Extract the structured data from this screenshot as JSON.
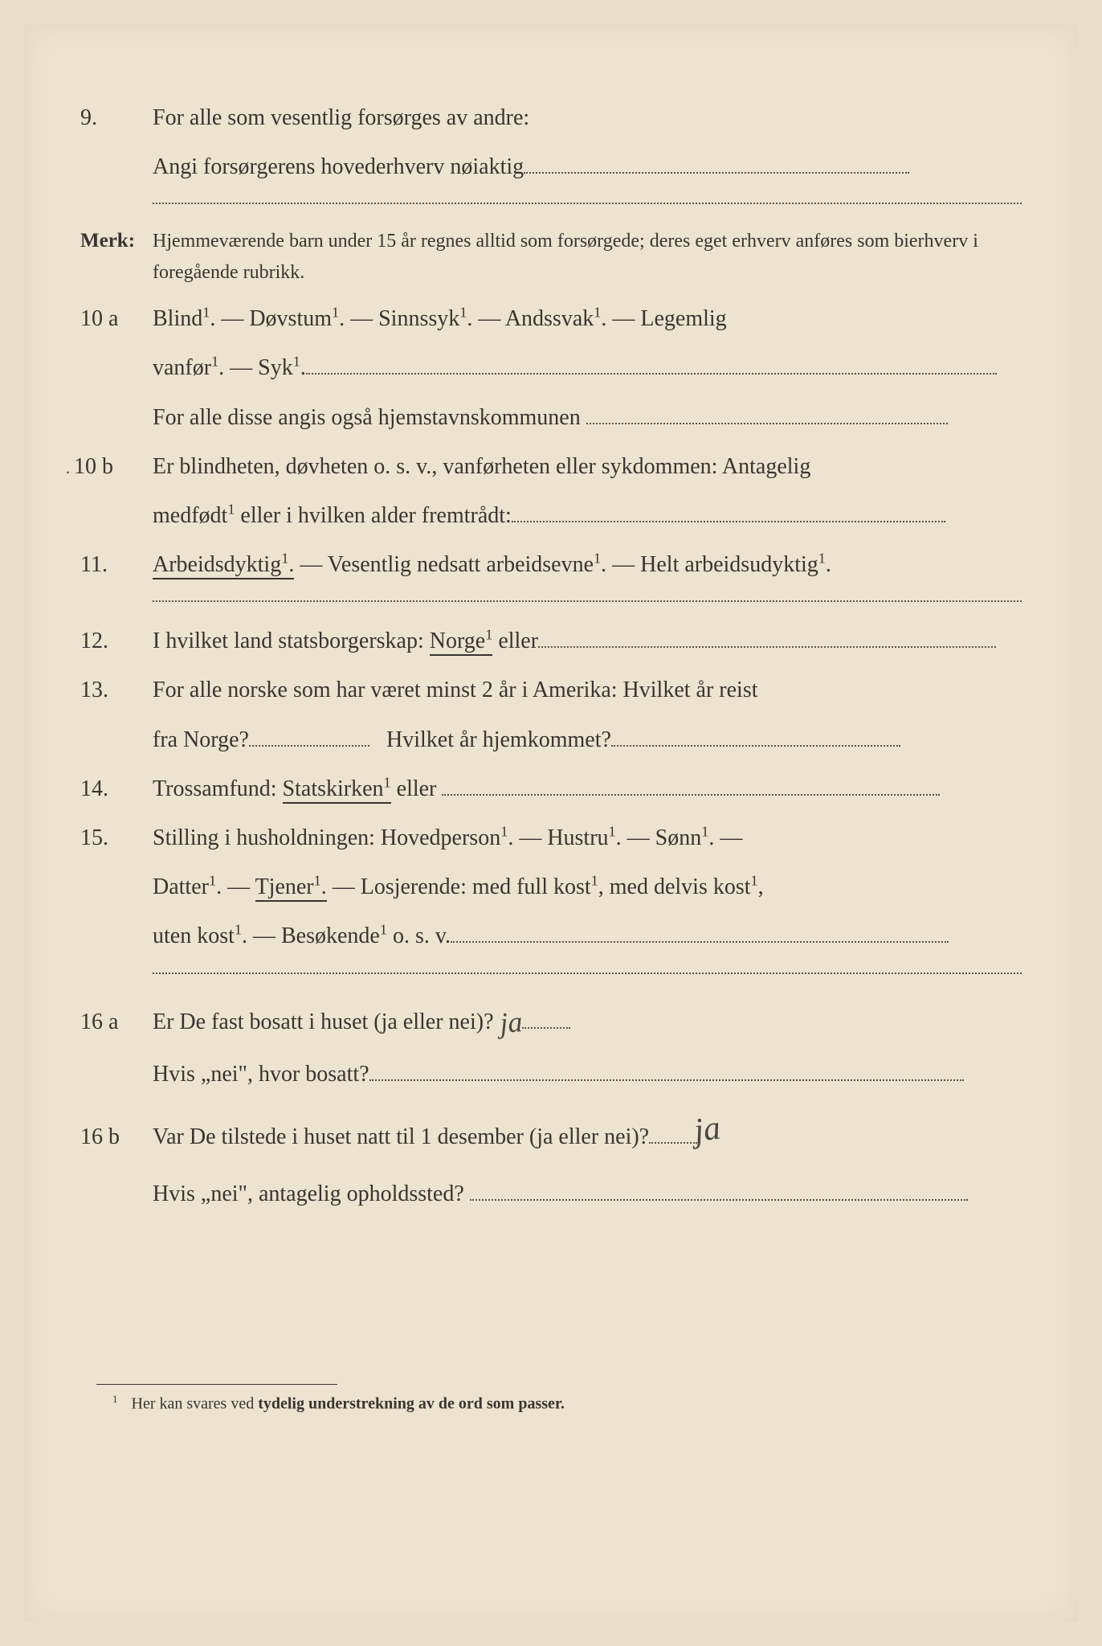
{
  "background_color": "#ece4d0",
  "text_color": "#3a3430",
  "q9": {
    "num": "9.",
    "line1": "For alle som vesentlig forsørges av andre:",
    "line2": "Angi forsørgerens hovederhverv nøiaktig"
  },
  "merk": {
    "label": "Merk:",
    "text": "Hjemmeværende barn under 15 år regnes alltid som forsørgede; deres eget erhverv anføres som bierhverv i foregående rubrikk."
  },
  "q10a": {
    "num": "10 a",
    "text1": "Blind¹. — Døvstum¹. — Sinnssyk¹. — Andssvak¹. — Legemlig",
    "text2": "vanfør¹. — Syk¹.",
    "text3": "For alle disse angis også hjemstavnskommunen"
  },
  "q10b": {
    "num": "10 b",
    "text1": "Er blindheten, døvheten o. s. v., vanførheten eller sykdommen: Antagelig",
    "text2": "medfødt¹ eller i hvilken alder fremtrådt:"
  },
  "q11": {
    "num": "11.",
    "part1": "Arbeidsdyktig¹.",
    "part2": " — Vesentlig nedsatt arbeidsevne¹. — Helt arbeidsudyktig¹."
  },
  "q12": {
    "num": "12.",
    "part1": "I hvilket land statsborgerskap: ",
    "underlined": "Norge¹",
    "part2": " eller"
  },
  "q13": {
    "num": "13.",
    "text1": "For alle norske som har været minst 2 år i Amerika: Hvilket år reist",
    "text2a": "fra Norge?",
    "text2b": "Hvilket år hjemkommet?"
  },
  "q14": {
    "num": "14.",
    "part1": "Trossamfund: ",
    "underlined": "Statskirken¹",
    "part2": " eller"
  },
  "q15": {
    "num": "15.",
    "line1": "Stilling i husholdningen: Hovedperson¹. — Hustru¹. — Sønn¹. —",
    "line2a": "Datter¹. — ",
    "line2_underlined": "Tjener¹.",
    "line2b": " — Losjerende: med full kost¹, med delvis kost¹,",
    "line3": "uten kost¹. — Besøkende¹ o. s. v."
  },
  "q16a": {
    "num": "16 a",
    "text1": "Er De fast bosatt i huset (ja eller nei)?",
    "answer1": "ja",
    "text2": "Hvis „nei\", hvor bosatt?"
  },
  "q16b": {
    "num": "16 b",
    "text1": "Var De tilstede i huset natt til 1 desember (ja eller nei)?",
    "answer1": "ja",
    "text2": "Hvis „nei\", antagelig opholdssted?"
  },
  "footnote": {
    "marker": "1",
    "text_part1": "Her kan svares ved ",
    "text_bold": "tydelig understrekning av de ord som passer."
  }
}
